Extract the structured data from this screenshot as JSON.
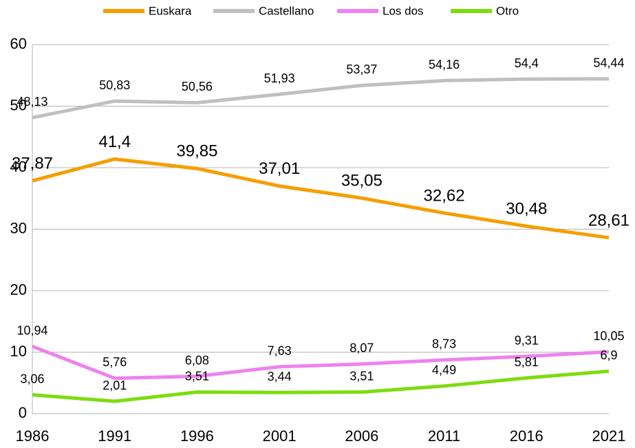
{
  "chart_data": {
    "type": "line",
    "categories": [
      "1986",
      "1991",
      "1996",
      "2001",
      "2006",
      "2011",
      "2016",
      "2021"
    ],
    "ylim": [
      0,
      60
    ],
    "yticks": [
      0,
      10,
      20,
      30,
      40,
      50,
      60
    ],
    "grid": true,
    "legend": "top",
    "series": [
      {
        "name": "Euskara",
        "color": "#f59e00",
        "values": [
          37.87,
          41.4,
          39.85,
          37.01,
          35.05,
          32.62,
          30.48,
          28.61
        ],
        "value_labels": [
          "37,87",
          "41,4",
          "39,85",
          "37,01",
          "35,05",
          "32,62",
          "30,48",
          "28,61"
        ]
      },
      {
        "name": "Castellano",
        "color": "#c0c0c0",
        "values": [
          48.13,
          50.83,
          50.56,
          51.93,
          53.37,
          54.16,
          54.4,
          54.44
        ],
        "value_labels": [
          "48,13",
          "50,83",
          "50,56",
          "51,93",
          "53,37",
          "54,16",
          "54,4",
          "54,44"
        ]
      },
      {
        "name": "Los dos",
        "color": "#ee82ee",
        "values": [
          10.94,
          5.76,
          6.08,
          7.63,
          8.07,
          8.73,
          9.31,
          10.05
        ],
        "value_labels": [
          "10,94",
          "5,76",
          "6,08",
          "7,63",
          "8,07",
          "8,73",
          "9,31",
          "10,05"
        ]
      },
      {
        "name": "Otro",
        "color": "#7ddc10",
        "values": [
          3.06,
          2.01,
          3.51,
          3.44,
          3.51,
          4.49,
          5.81,
          6.9
        ],
        "value_labels": [
          "3,06",
          "2,01",
          "3,51",
          "3,44",
          "3,51",
          "4,49",
          "5,81",
          "6,9"
        ]
      }
    ]
  }
}
